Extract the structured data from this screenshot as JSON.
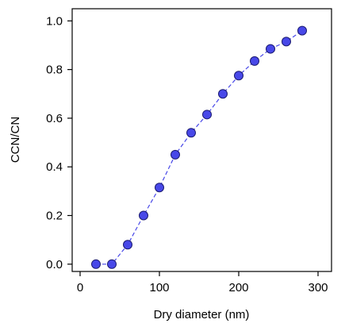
{
  "chart_data": {
    "type": "scatter",
    "xlabel": "Dry diameter (nm)",
    "ylabel": "CCN/CN",
    "xlim": [
      -10,
      317
    ],
    "ylim": [
      -0.03,
      1.05
    ],
    "xticks": [
      0,
      100,
      200,
      300
    ],
    "yticks": [
      0.0,
      0.2,
      0.4,
      0.6,
      0.8,
      1.0
    ],
    "xtick_labels": [
      "0",
      "100",
      "200",
      "300"
    ],
    "ytick_labels": [
      "0.0",
      "0.2",
      "0.4",
      "0.6",
      "0.8",
      "1.0"
    ],
    "grid": false,
    "series": [
      {
        "x": [
          20,
          40,
          60,
          80,
          100,
          120,
          140,
          160,
          180,
          200,
          220,
          240,
          260,
          280
        ],
        "y": [
          0.0,
          0.0,
          0.08,
          0.2,
          0.315,
          0.45,
          0.54,
          0.615,
          0.7,
          0.775,
          0.835,
          0.885,
          0.915,
          0.96
        ],
        "marker_color": "#4848e8",
        "marker_edge": "#1a1a70",
        "line_color": "#4848e8",
        "line_style": "dashed"
      }
    ]
  }
}
